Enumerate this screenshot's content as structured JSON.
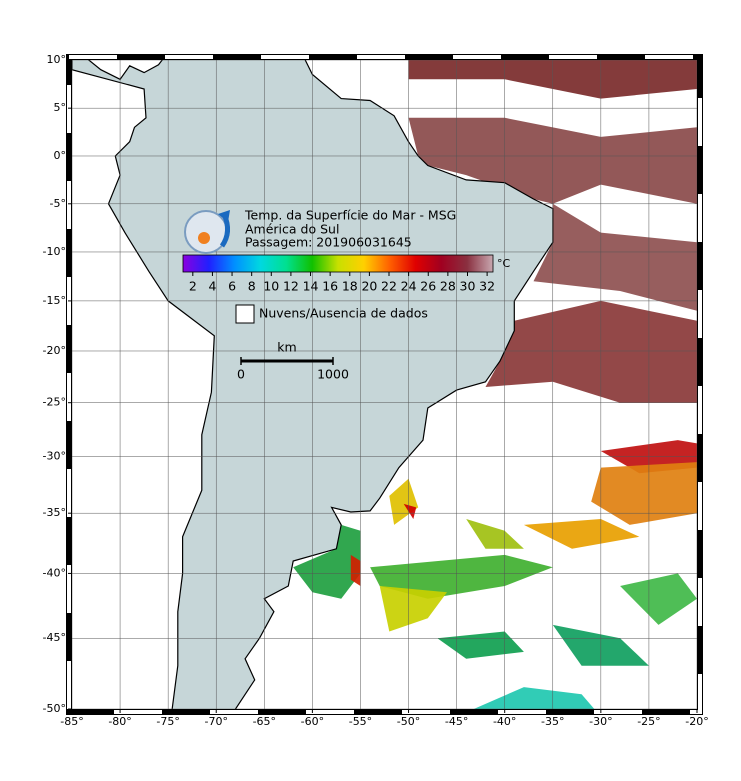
{
  "chart_data": {
    "type": "map",
    "projection": "mercator",
    "title": "Temp. da Superfície do Mar - MSG",
    "subtitle": "América do Sul",
    "pass": "Passagem: 201906031645",
    "xlim": [
      -85,
      -20
    ],
    "ylim": [
      -50,
      10
    ],
    "xticks": [
      {
        "value": -85,
        "label": "-85°"
      },
      {
        "value": -80,
        "label": "-80°"
      },
      {
        "value": -75,
        "label": "-75°"
      },
      {
        "value": -70,
        "label": "-70°"
      },
      {
        "value": -65,
        "label": "-65°"
      },
      {
        "value": -60,
        "label": "-60°"
      },
      {
        "value": -55,
        "label": "-55°"
      },
      {
        "value": -50,
        "label": "-50°"
      },
      {
        "value": -45,
        "label": "-45°"
      },
      {
        "value": -40,
        "label": "-40°"
      },
      {
        "value": -35,
        "label": "-35°"
      },
      {
        "value": -30,
        "label": "-30°"
      },
      {
        "value": -25,
        "label": "-25°"
      },
      {
        "value": -20,
        "label": "-20°"
      }
    ],
    "yticks": [
      {
        "value": 10,
        "label": "10°"
      },
      {
        "value": 5,
        "label": "5°"
      },
      {
        "value": 0,
        "label": "0°"
      },
      {
        "value": -5,
        "label": "-5°"
      },
      {
        "value": -10,
        "label": "-10°"
      },
      {
        "value": -15,
        "label": "-15°"
      },
      {
        "value": -20,
        "label": "-20°"
      },
      {
        "value": -25,
        "label": "-25°"
      },
      {
        "value": -30,
        "label": "-30°"
      },
      {
        "value": -35,
        "label": "-35°"
      },
      {
        "value": -40,
        "label": "-40°"
      },
      {
        "value": -45,
        "label": "-45°"
      },
      {
        "value": -50,
        "label": "-50°"
      }
    ],
    "grid": true,
    "colorbar": {
      "unit": "°C",
      "lim": [
        1,
        32.6
      ],
      "ticks": [
        2,
        4,
        6,
        8,
        10,
        12,
        14,
        16,
        18,
        20,
        22,
        24,
        26,
        28,
        30,
        32
      ],
      "colors": [
        "#8a00e0",
        "#2020ff",
        "#0090ff",
        "#00d8e0",
        "#00e090",
        "#10c000",
        "#c8e000",
        "#ffd000",
        "#ff6000",
        "#e00000",
        "#a00020",
        "#8a3040",
        "#c8a8b0"
      ]
    },
    "legend": "Nuvens/Ausencia de dados",
    "scale_bar": {
      "unit": "km",
      "ticks": [
        0,
        1000
      ]
    }
  }
}
